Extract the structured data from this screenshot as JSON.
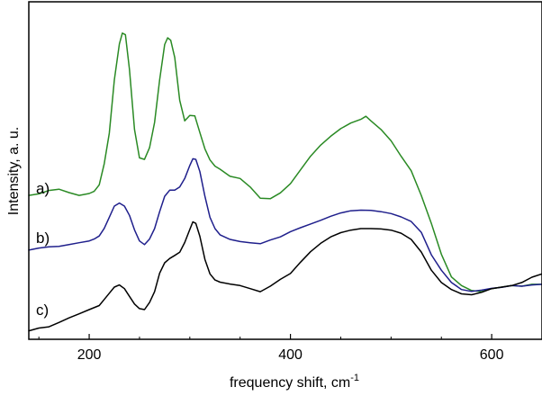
{
  "chart_data": {
    "type": "line",
    "xlabel": "frequency shift, cm",
    "xlabel_superscript": "-1",
    "ylabel": "Intensity, a. u.",
    "xlim": [
      140,
      650
    ],
    "ylim": [
      0,
      1
    ],
    "x_ticks": [
      200,
      400,
      600
    ],
    "y_ticks": [],
    "grid": false,
    "series": [
      {
        "name": "a)",
        "color": "#2a8a24",
        "points": [
          [
            140,
            0.453
          ],
          [
            150,
            0.458
          ],
          [
            160,
            0.469
          ],
          [
            170,
            0.473
          ],
          [
            180,
            0.462
          ],
          [
            190,
            0.453
          ],
          [
            200,
            0.459
          ],
          [
            205,
            0.466
          ],
          [
            210,
            0.487
          ],
          [
            215,
            0.556
          ],
          [
            220,
            0.655
          ],
          [
            225,
            0.828
          ],
          [
            230,
            0.945
          ],
          [
            233,
            0.98
          ],
          [
            236,
            0.975
          ],
          [
            240,
            0.862
          ],
          [
            245,
            0.667
          ],
          [
            250,
            0.575
          ],
          [
            255,
            0.57
          ],
          [
            260,
            0.608
          ],
          [
            265,
            0.69
          ],
          [
            270,
            0.828
          ],
          [
            275,
            0.943
          ],
          [
            278,
            0.965
          ],
          [
            281,
            0.957
          ],
          [
            285,
            0.901
          ],
          [
            290,
            0.762
          ],
          [
            295,
            0.695
          ],
          [
            300,
            0.713
          ],
          [
            305,
            0.711
          ],
          [
            310,
            0.657
          ],
          [
            315,
            0.604
          ],
          [
            320,
            0.568
          ],
          [
            325,
            0.548
          ],
          [
            330,
            0.538
          ],
          [
            340,
            0.515
          ],
          [
            350,
            0.508
          ],
          [
            360,
            0.48
          ],
          [
            370,
            0.444
          ],
          [
            380,
            0.442
          ],
          [
            390,
            0.461
          ],
          [
            400,
            0.491
          ],
          [
            410,
            0.536
          ],
          [
            420,
            0.58
          ],
          [
            430,
            0.616
          ],
          [
            440,
            0.645
          ],
          [
            450,
            0.67
          ],
          [
            460,
            0.688
          ],
          [
            470,
            0.7
          ],
          [
            475,
            0.71
          ],
          [
            480,
            0.695
          ],
          [
            490,
            0.667
          ],
          [
            500,
            0.63
          ],
          [
            510,
            0.58
          ],
          [
            520,
            0.533
          ],
          [
            530,
            0.453
          ],
          [
            540,
            0.362
          ],
          [
            550,
            0.262
          ],
          [
            560,
            0.188
          ],
          [
            570,
            0.16
          ],
          [
            580,
            0.144
          ],
          [
            590,
            0.14
          ],
          [
            600,
            0.15
          ],
          [
            610,
            0.155
          ],
          [
            620,
            0.16
          ],
          [
            630,
            0.158
          ],
          [
            640,
            0.164
          ],
          [
            650,
            0.164
          ]
        ]
      },
      {
        "name": "b)",
        "color": "#1f1f8c",
        "points": [
          [
            140,
            0.275
          ],
          [
            150,
            0.282
          ],
          [
            160,
            0.286
          ],
          [
            170,
            0.287
          ],
          [
            180,
            0.293
          ],
          [
            190,
            0.299
          ],
          [
            200,
            0.305
          ],
          [
            205,
            0.311
          ],
          [
            210,
            0.321
          ],
          [
            215,
            0.346
          ],
          [
            220,
            0.382
          ],
          [
            225,
            0.418
          ],
          [
            230,
            0.428
          ],
          [
            235,
            0.418
          ],
          [
            240,
            0.388
          ],
          [
            245,
            0.341
          ],
          [
            250,
            0.305
          ],
          [
            255,
            0.293
          ],
          [
            260,
            0.311
          ],
          [
            265,
            0.345
          ],
          [
            270,
            0.4
          ],
          [
            275,
            0.45
          ],
          [
            280,
            0.47
          ],
          [
            285,
            0.47
          ],
          [
            290,
            0.48
          ],
          [
            295,
            0.508
          ],
          [
            300,
            0.55
          ],
          [
            303,
            0.572
          ],
          [
            306,
            0.57
          ],
          [
            310,
            0.53
          ],
          [
            315,
            0.45
          ],
          [
            320,
            0.382
          ],
          [
            325,
            0.345
          ],
          [
            330,
            0.325
          ],
          [
            340,
            0.31
          ],
          [
            350,
            0.303
          ],
          [
            360,
            0.299
          ],
          [
            370,
            0.296
          ],
          [
            380,
            0.308
          ],
          [
            390,
            0.318
          ],
          [
            400,
            0.335
          ],
          [
            410,
            0.348
          ],
          [
            420,
            0.36
          ],
          [
            430,
            0.372
          ],
          [
            440,
            0.385
          ],
          [
            450,
            0.396
          ],
          [
            460,
            0.403
          ],
          [
            470,
            0.405
          ],
          [
            480,
            0.404
          ],
          [
            490,
            0.4
          ],
          [
            500,
            0.394
          ],
          [
            510,
            0.383
          ],
          [
            520,
            0.368
          ],
          [
            530,
            0.333
          ],
          [
            540,
            0.26
          ],
          [
            550,
            0.21
          ],
          [
            560,
            0.17
          ],
          [
            570,
            0.147
          ],
          [
            580,
            0.141
          ],
          [
            590,
            0.145
          ],
          [
            600,
            0.151
          ],
          [
            610,
            0.154
          ],
          [
            620,
            0.16
          ],
          [
            630,
            0.158
          ],
          [
            640,
            0.162
          ],
          [
            650,
            0.164
          ]
        ]
      },
      {
        "name": "c)",
        "color": "#000000",
        "points": [
          [
            140,
            0.013
          ],
          [
            150,
            0.022
          ],
          [
            160,
            0.026
          ],
          [
            170,
            0.04
          ],
          [
            180,
            0.055
          ],
          [
            190,
            0.068
          ],
          [
            200,
            0.082
          ],
          [
            210,
            0.095
          ],
          [
            215,
            0.115
          ],
          [
            220,
            0.135
          ],
          [
            225,
            0.155
          ],
          [
            230,
            0.162
          ],
          [
            235,
            0.15
          ],
          [
            240,
            0.125
          ],
          [
            245,
            0.1
          ],
          [
            250,
            0.085
          ],
          [
            255,
            0.082
          ],
          [
            260,
            0.105
          ],
          [
            265,
            0.14
          ],
          [
            270,
            0.2
          ],
          [
            275,
            0.234
          ],
          [
            280,
            0.248
          ],
          [
            285,
            0.258
          ],
          [
            290,
            0.268
          ],
          [
            295,
            0.3
          ],
          [
            300,
            0.342
          ],
          [
            303,
            0.367
          ],
          [
            306,
            0.362
          ],
          [
            310,
            0.32
          ],
          [
            315,
            0.245
          ],
          [
            320,
            0.198
          ],
          [
            325,
            0.178
          ],
          [
            330,
            0.171
          ],
          [
            340,
            0.165
          ],
          [
            350,
            0.16
          ],
          [
            360,
            0.15
          ],
          [
            370,
            0.14
          ],
          [
            380,
            0.158
          ],
          [
            390,
            0.18
          ],
          [
            400,
            0.199
          ],
          [
            410,
            0.236
          ],
          [
            420,
            0.27
          ],
          [
            430,
            0.297
          ],
          [
            440,
            0.318
          ],
          [
            450,
            0.332
          ],
          [
            460,
            0.34
          ],
          [
            470,
            0.345
          ],
          [
            480,
            0.345
          ],
          [
            490,
            0.344
          ],
          [
            500,
            0.34
          ],
          [
            510,
            0.33
          ],
          [
            520,
            0.31
          ],
          [
            530,
            0.269
          ],
          [
            540,
            0.21
          ],
          [
            550,
            0.17
          ],
          [
            560,
            0.147
          ],
          [
            570,
            0.133
          ],
          [
            580,
            0.13
          ],
          [
            590,
            0.138
          ],
          [
            600,
            0.15
          ],
          [
            610,
            0.155
          ],
          [
            620,
            0.16
          ],
          [
            630,
            0.17
          ],
          [
            640,
            0.187
          ],
          [
            650,
            0.198
          ]
        ]
      }
    ]
  }
}
